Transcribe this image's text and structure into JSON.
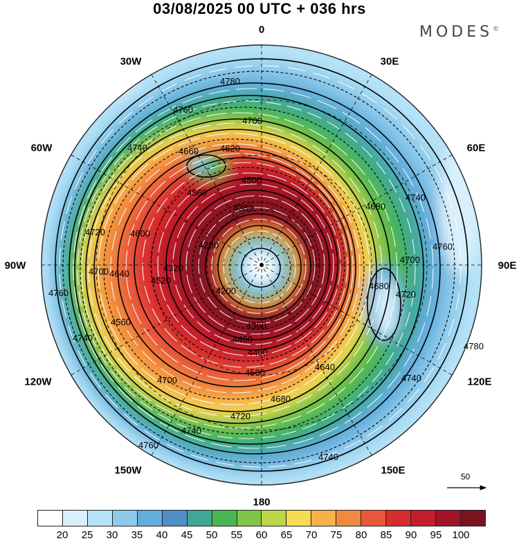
{
  "title": "03/08/2025  00 UTC  + 036 hrs",
  "brand": "MODES",
  "brand_mark": "©",
  "longitude_labels": {
    "lon_0": "0",
    "lon_30e": "30E",
    "lon_60e": "60E",
    "lon_90e": "90E",
    "lon_120e": "120E",
    "lon_150e": "150E",
    "lon_180": "180",
    "lon_150w": "150W",
    "lon_120w": "120W",
    "lon_90w": "90W",
    "lon_60w": "60W",
    "lon_30w": "30W"
  },
  "reference_vector_label": "50",
  "colorbar": {
    "colors": [
      "#ffffff",
      "#d8f0fb",
      "#b5e2f7",
      "#8ecbeb",
      "#63aedd",
      "#4f8fc6",
      "#3ea894",
      "#49b653",
      "#80c548",
      "#bcd648",
      "#f5dc52",
      "#f6b14b",
      "#f18a3e",
      "#e9583a",
      "#d82d2e",
      "#bf1e2a",
      "#a01526",
      "#7c1220"
    ],
    "labels": [
      "20",
      "25",
      "30",
      "35",
      "40",
      "45",
      "50",
      "55",
      "60",
      "65",
      "70",
      "75",
      "80",
      "85",
      "90",
      "95",
      "100"
    ]
  },
  "contour_labels": [
    "4780",
    "4760",
    "4700",
    "4740",
    "4660",
    "4620",
    "4560",
    "4500",
    "4380",
    "4680",
    "4740",
    "4720",
    "4700",
    "4600",
    "4280",
    "4200",
    "4640",
    "4320",
    "4520",
    "4560",
    "4740",
    "4760",
    "4700",
    "4680",
    "4720",
    "4740",
    "4760",
    "4640",
    "4680",
    "4720",
    "4760",
    "4740",
    "4780",
    "4400",
    "4360",
    "4460",
    "4580",
    "4740",
    "4700"
  ],
  "chart_data": {
    "type": "heatmap",
    "title": "03/08/2025  00 UTC  + 036 hrs",
    "projection": "polar stereographic (south pole centered)",
    "field_shaded": "wind speed",
    "field_contoured": "geopotential height",
    "colorbar_levels": [
      20,
      25,
      30,
      35,
      40,
      45,
      50,
      55,
      60,
      65,
      70,
      75,
      80,
      85,
      90,
      95,
      100
    ],
    "longitudes": [
      "0",
      "30E",
      "60E",
      "90E",
      "120E",
      "150E",
      "180",
      "150W",
      "120W",
      "90W",
      "60W",
      "30W"
    ],
    "height_contours_labeled": [
      4200,
      4280,
      4320,
      4360,
      4380,
      4400,
      4460,
      4500,
      4520,
      4560,
      4580,
      4600,
      4620,
      4640,
      4660,
      4680,
      4700,
      4720,
      4740,
      4760,
      4780
    ],
    "reference_vector": 50
  }
}
